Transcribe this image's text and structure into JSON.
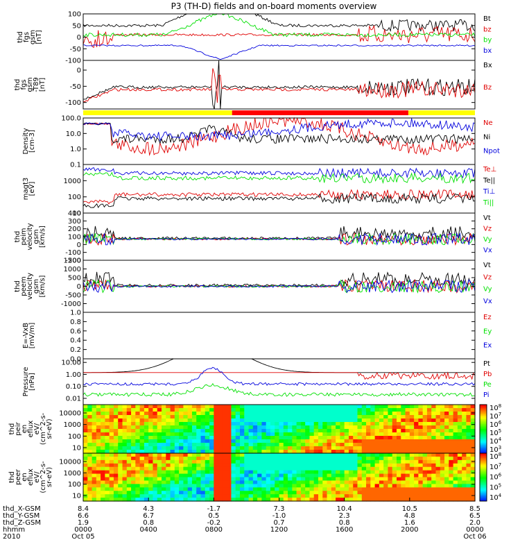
{
  "title": "P3 (TH-D) fields and on-board moments overview",
  "colors": {
    "black": "#000000",
    "red": "#e00000",
    "green": "#00e000",
    "blue": "#0000dd",
    "yellow": "#ffff00",
    "barred": "#ff0000"
  },
  "chart_data": [
    {
      "type": "line",
      "id": "fgs_gse",
      "ylabel": [
        "thd",
        "fgs",
        "gsm",
        "[nT]"
      ],
      "ylim": [
        -100,
        100
      ],
      "yticks": [
        "100",
        "50",
        "0",
        "-50",
        "-100"
      ],
      "series": [
        {
          "name": "Bt",
          "color": "#000000"
        },
        {
          "name": "bz",
          "color": "#e00000"
        },
        {
          "name": "by",
          "color": "#00e000"
        },
        {
          "name": "bx",
          "color": "#0000dd"
        }
      ]
    },
    {
      "type": "line",
      "id": "fgs_t89",
      "ylabel": [
        "thd",
        "fgs",
        "gsm",
        "-T89",
        "[nT]"
      ],
      "ylim": [
        -120,
        30
      ],
      "yticks": [
        "0",
        "-50",
        "-100"
      ],
      "series": [
        {
          "name": "Bx",
          "color": "#000000"
        },
        {
          "name": "Bz",
          "color": "#e00000"
        }
      ]
    },
    {
      "type": "line",
      "id": "density",
      "ylabel": [
        "Density",
        "[cm-3]"
      ],
      "log": true,
      "ylim": [
        0.1,
        100.0
      ],
      "yticks": [
        "100.0",
        "10.0",
        "1.0",
        "0.1"
      ],
      "series": [
        {
          "name": "Ne",
          "color": "#e00000"
        },
        {
          "name": "Ni",
          "color": "#000000"
        },
        {
          "name": "Npot",
          "color": "#0000dd"
        }
      ]
    },
    {
      "type": "line",
      "id": "temperature",
      "ylabel": [
        "magt3",
        "[eV]"
      ],
      "log": true,
      "ylim": [
        10,
        10000
      ],
      "yticks": [
        "1000",
        "100",
        "10"
      ],
      "series": [
        {
          "name": "Te⊥",
          "color": "#e00000"
        },
        {
          "name": "Te||",
          "color": "#000000"
        },
        {
          "name": "Ti⊥",
          "color": "#0000dd"
        },
        {
          "name": "Ti||",
          "color": "#00e000"
        }
      ]
    },
    {
      "type": "line",
      "id": "peim_velocity",
      "ylabel": [
        "thd",
        "peim",
        "velocity",
        "gsm",
        "[km/s]"
      ],
      "ylim": [
        -200,
        400
      ],
      "yticks": [
        "400",
        "300",
        "200",
        "100",
        "0",
        "-100",
        "-200"
      ],
      "series": [
        {
          "name": "Vt",
          "color": "#000000"
        },
        {
          "name": "Vz",
          "color": "#e00000"
        },
        {
          "name": "Vy",
          "color": "#00e000"
        },
        {
          "name": "Vx",
          "color": "#0000dd"
        }
      ]
    },
    {
      "type": "line",
      "id": "peem_velocity",
      "ylabel": [
        "thd",
        "peem",
        "velocity",
        "gsm",
        "[km/s]"
      ],
      "ylim": [
        -1500,
        1500
      ],
      "yticks": [
        "1500",
        "1000",
        "500",
        "0",
        "-500",
        "-1000"
      ],
      "series": [
        {
          "name": "Vt",
          "color": "#000000"
        },
        {
          "name": "Vz",
          "color": "#e00000"
        },
        {
          "name": "Vy",
          "color": "#00e000"
        },
        {
          "name": "Vx",
          "color": "#0000dd"
        }
      ]
    },
    {
      "type": "line",
      "id": "efield",
      "ylabel": [
        "E=-VxB",
        "[mV/m]"
      ],
      "ylim": [
        0,
        1.0
      ],
      "yticks": [
        "1.0",
        "0.8",
        "0.6",
        "0.4",
        "0.2",
        "0.0"
      ],
      "series": [
        {
          "name": "Ez",
          "color": "#e00000"
        },
        {
          "name": "Ey",
          "color": "#00e000"
        },
        {
          "name": "Ex",
          "color": "#0000dd"
        }
      ]
    },
    {
      "type": "line",
      "id": "pressure",
      "ylabel": [
        "Pressure",
        "[nPa]"
      ],
      "log": true,
      "ylim": [
        0.003,
        20
      ],
      "yticks": [
        "10.00",
        "1.00",
        "0.10",
        "0.01"
      ],
      "series": [
        {
          "name": "Pt",
          "color": "#000000"
        },
        {
          "name": "Pb",
          "color": "#e00000"
        },
        {
          "name": "Pe",
          "color": "#00e000"
        },
        {
          "name": "Pi",
          "color": "#0000dd"
        }
      ]
    },
    {
      "type": "heatmap",
      "id": "peir",
      "ylabel": [
        "thd",
        "peir",
        "en",
        "eflux",
        "eV/",
        "(cm^2-s-",
        "sr-eV)"
      ],
      "yticks": [
        "10000",
        "1000",
        "100",
        "10"
      ],
      "colorbar": {
        "ticks": [
          "10^8",
          "10^7",
          "10^6",
          "10^5",
          "10^4",
          "10^3"
        ]
      }
    },
    {
      "type": "heatmap",
      "id": "peer",
      "ylabel": [
        "thd",
        "peer",
        "en",
        "eflux",
        "eV/",
        "(cm^2-s-",
        "sr-eV)"
      ],
      "yticks": [
        "10000",
        "1000",
        "100",
        "10"
      ],
      "colorbar": {
        "ticks": [
          "10^8",
          "10^7",
          "10^6",
          "10^5",
          "10^4"
        ]
      }
    }
  ],
  "status_bar": {
    "segments": [
      {
        "from": 0.0,
        "to": 0.38,
        "color": "#ffff00"
      },
      {
        "from": 0.38,
        "to": 0.83,
        "color": "#ff0000"
      },
      {
        "from": 0.83,
        "to": 1.0,
        "color": "#ffff00"
      }
    ]
  },
  "xaxis": {
    "row_labels": [
      "thd_X-GSM",
      "thd_Y-GSM",
      "thd_Z-GSM",
      "hhmm",
      "2010"
    ],
    "columns": [
      {
        "x": 0,
        "X": "8.4",
        "Y": "6.6",
        "Z": "1.9",
        "hhmm": "0000",
        "date": "Oct 05"
      },
      {
        "x": 4,
        "X": "4.3",
        "Y": "6.7",
        "Z": "0.8",
        "hhmm": "0400",
        "date": ""
      },
      {
        "x": 8,
        "X": "-1.7",
        "Y": "0.5",
        "Z": "-0.2",
        "hhmm": "0800",
        "date": ""
      },
      {
        "x": 12,
        "X": "7.3",
        "Y": "-1.0",
        "Z": "0.7",
        "hhmm": "1200",
        "date": ""
      },
      {
        "x": 16,
        "X": "10.4",
        "Y": "2.3",
        "Z": "0.8",
        "hhmm": "1600",
        "date": ""
      },
      {
        "x": 20,
        "X": "10.5",
        "Y": "4.8",
        "Z": "1.6",
        "hhmm": "2000",
        "date": ""
      },
      {
        "x": 24,
        "X": "8.5",
        "Y": "6.5",
        "Z": "2.0",
        "hhmm": "0000",
        "date": "Oct 06"
      }
    ]
  }
}
